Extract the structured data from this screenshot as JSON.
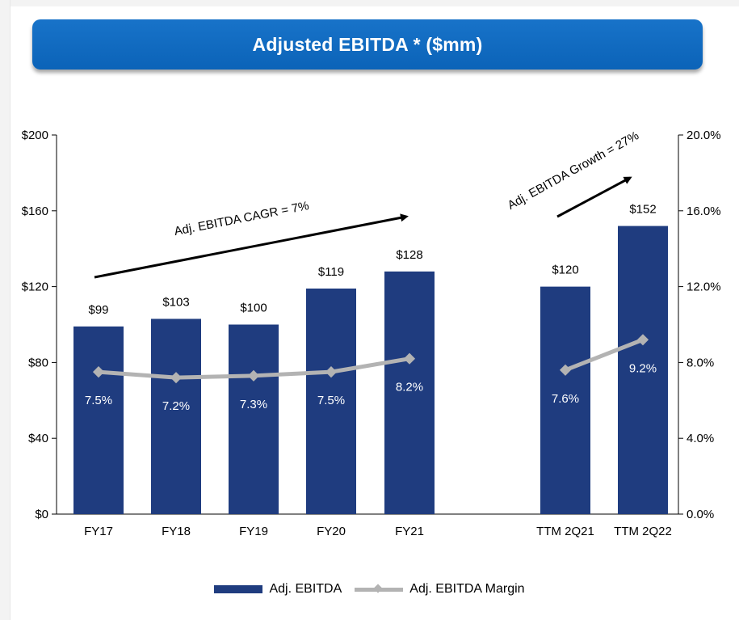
{
  "title": "Adjusted EBITDA * ($mm)",
  "colors": {
    "bar": "#1f3c7f",
    "line": "#b3b3b3",
    "banner": "#0b63b8",
    "axis": "#000000"
  },
  "chart_data": {
    "type": "bar",
    "categories": [
      "FY17",
      "FY18",
      "FY19",
      "FY20",
      "FY21",
      "TTM 2Q21",
      "TTM 2Q22"
    ],
    "series": [
      {
        "name": "Adj. EBITDA",
        "type": "bar",
        "axis": "left",
        "values": [
          99,
          103,
          100,
          119,
          128,
          120,
          152
        ],
        "labels": [
          "$99",
          "$103",
          "$100",
          "$119",
          "$128",
          "$120",
          "$152"
        ]
      },
      {
        "name": "Adj. EBITDA Margin",
        "type": "line",
        "axis": "right",
        "values": [
          7.5,
          7.2,
          7.3,
          7.5,
          8.2,
          7.6,
          9.2
        ],
        "labels": [
          "7.5%",
          "7.2%",
          "7.3%",
          "7.5%",
          "8.2%",
          "7.6%",
          "9.2%"
        ],
        "segments": [
          [
            0,
            1,
            2,
            3,
            4
          ],
          [
            5,
            6
          ]
        ]
      }
    ],
    "y_left": {
      "ylim": [
        0,
        200
      ],
      "ticks": [
        0,
        40,
        80,
        120,
        160,
        200
      ],
      "tick_labels": [
        "$0",
        "$40",
        "$80",
        "$120",
        "$160",
        "$200"
      ]
    },
    "y_right": {
      "ylim": [
        0,
        20
      ],
      "ticks": [
        0,
        4,
        8,
        12,
        16,
        20
      ],
      "tick_labels": [
        "0.0%",
        "4.0%",
        "8.0%",
        "12.0%",
        "16.0%",
        "20.0%"
      ]
    },
    "annotations": [
      "Adj. EBITDA CAGR = 7%",
      "Adj. EBITDA Growth = 27%"
    ],
    "legend": [
      "Adj. EBITDA",
      "Adj. EBITDA Margin"
    ],
    "legend_position": "bottom",
    "grid": false
  }
}
